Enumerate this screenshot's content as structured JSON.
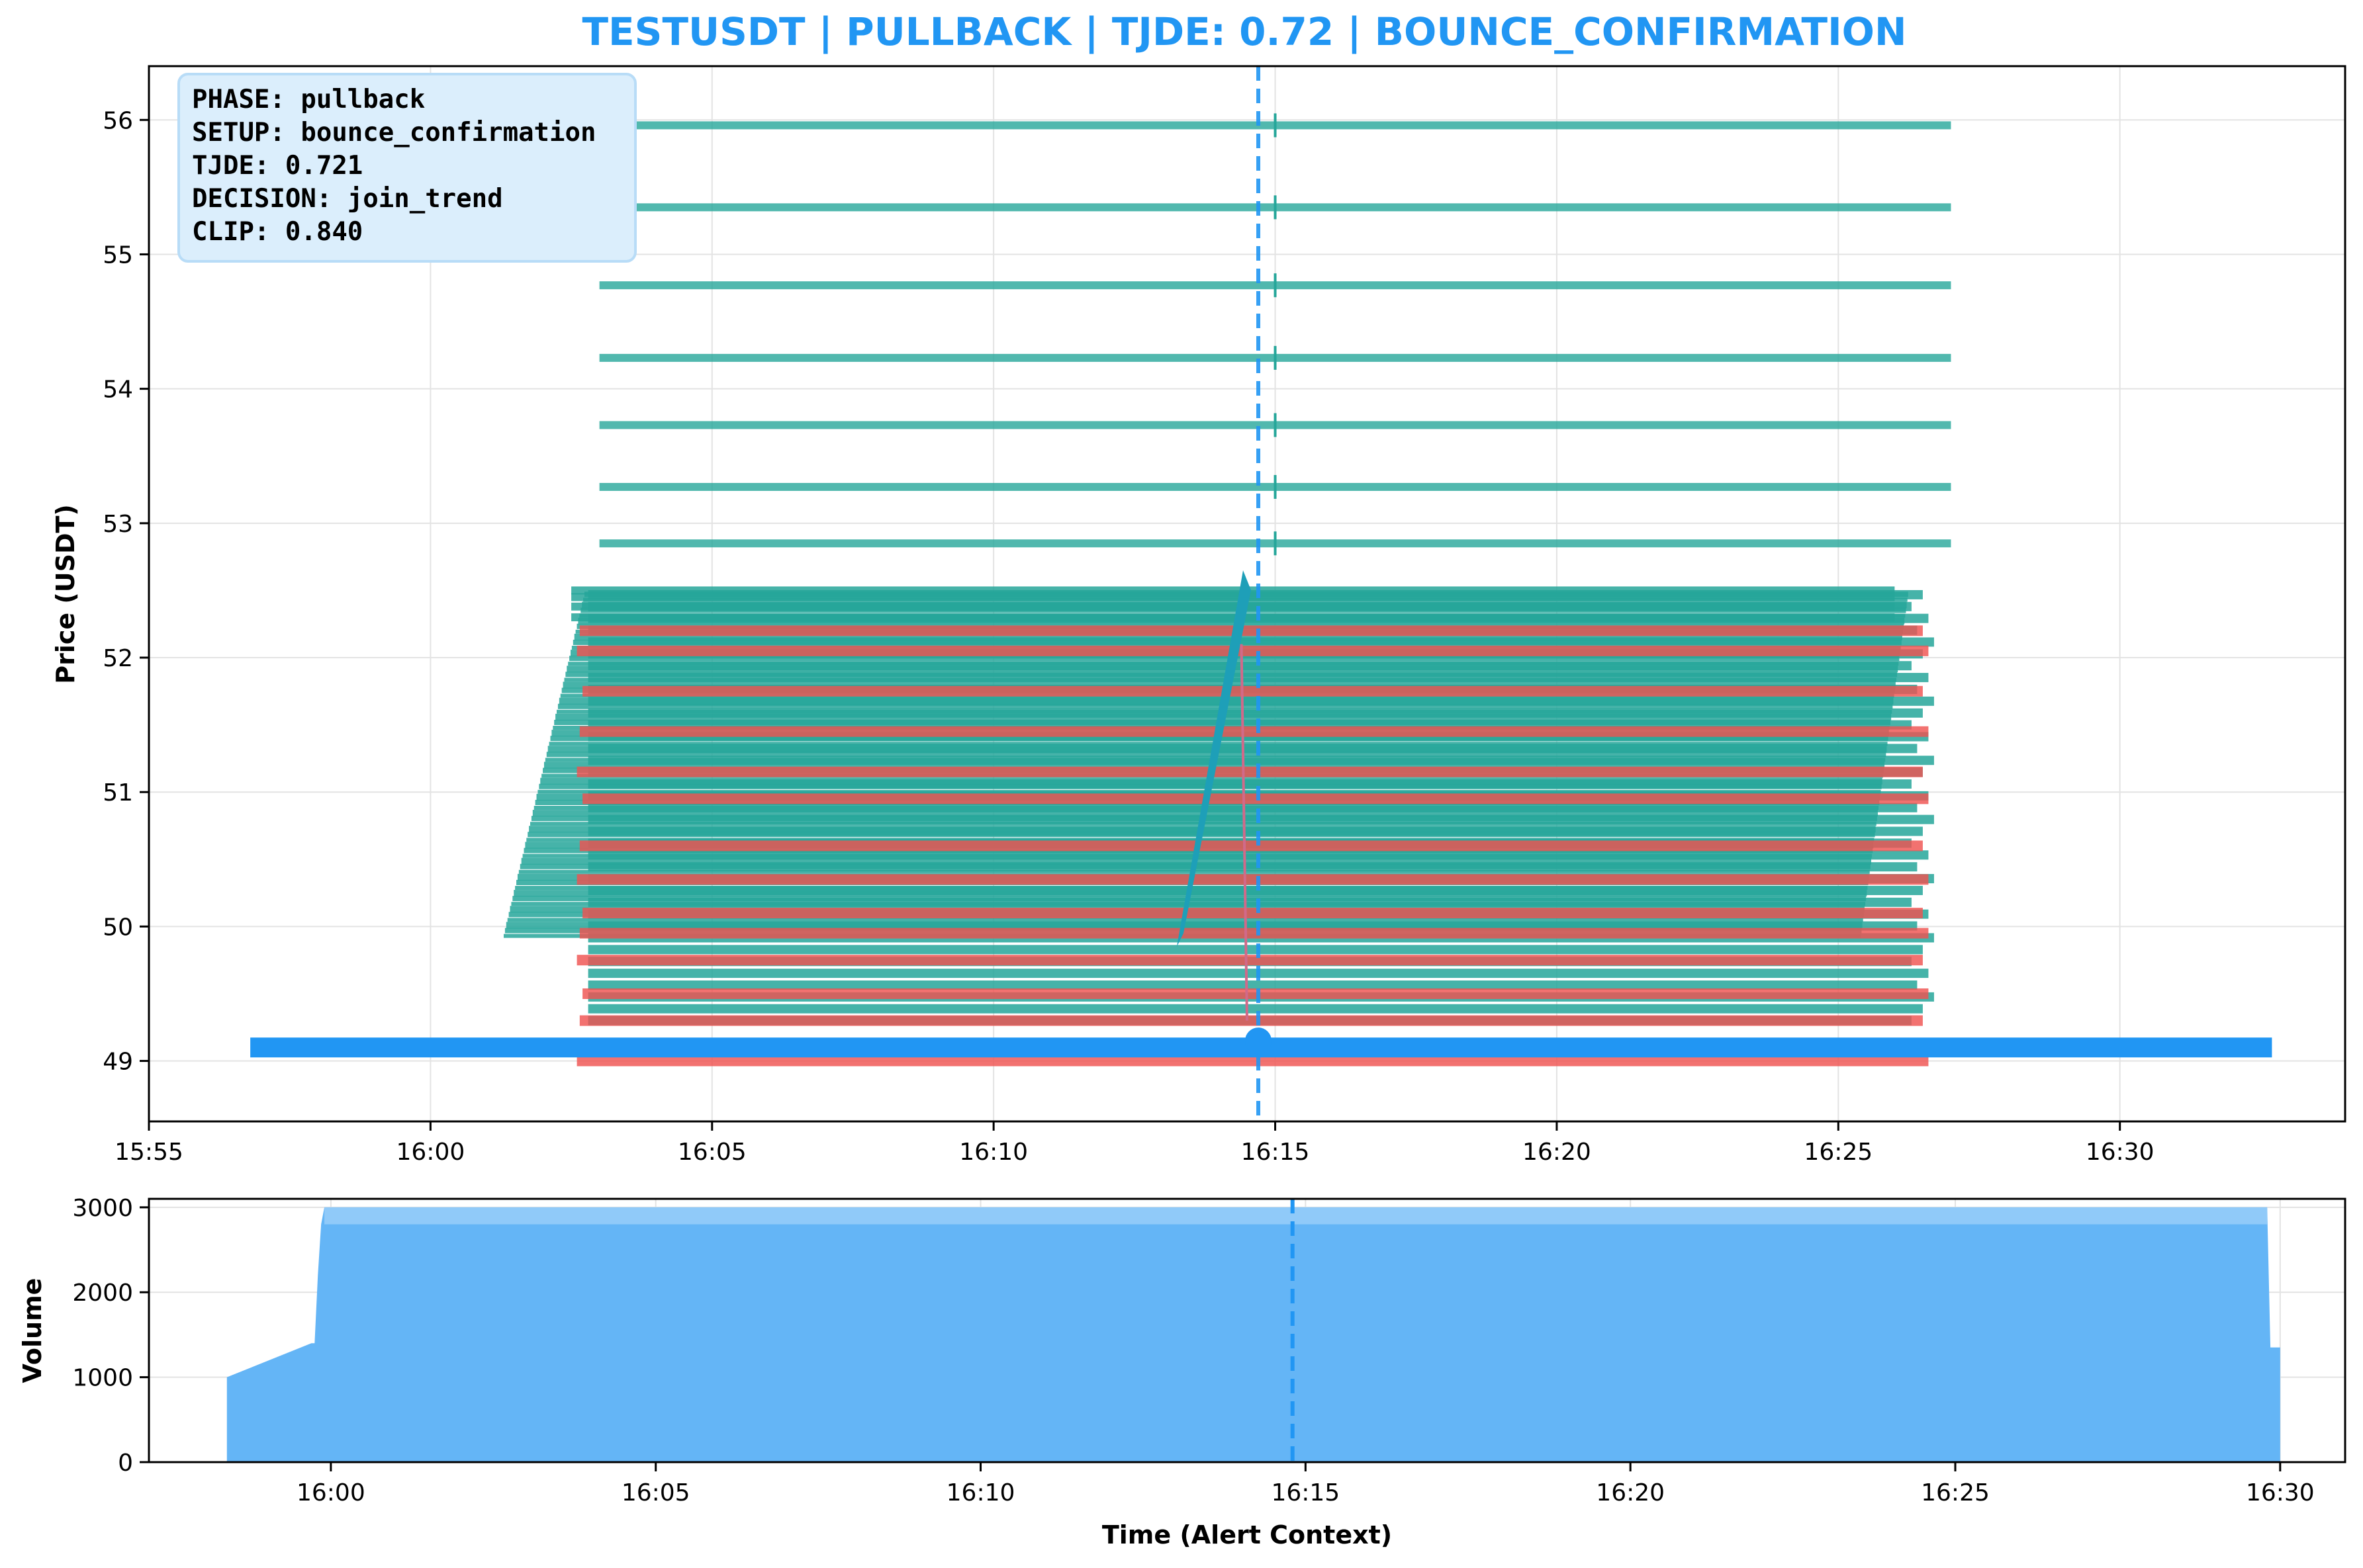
{
  "chart_data": [
    {
      "type": "candlestick",
      "title": "TESTUSDT | PULLBACK | TJDE: 0.72 | BOUNCE_CONFIRMATION",
      "xlabel": "",
      "ylabel": "Price (USDT)",
      "ylim": [
        48.55,
        56.4
      ],
      "xlim": [
        "15:55",
        "16:34"
      ],
      "grid": true,
      "x_ticks": [
        "15:55",
        "16:00",
        "16:05",
        "16:10",
        "16:15",
        "16:20",
        "16:25",
        "16:30"
      ],
      "y_ticks": [
        49,
        50,
        51,
        52,
        53,
        54,
        55,
        56
      ],
      "alert_time": "16:14.7",
      "bull_color": "#26a69a",
      "bear_color": "#ef5350",
      "alert_color": "#2196F3",
      "alert_price": 49.15,
      "alert_band": {
        "start": "15:56.8",
        "end": "16:32.7",
        "price": 49.1
      },
      "upper_bull_bars": [
        {
          "price": 55.96,
          "start": "16:03.0",
          "end": "16:27.0"
        },
        {
          "price": 55.35,
          "start": "16:03.0",
          "end": "16:27.0"
        },
        {
          "price": 54.77,
          "start": "16:03.0",
          "end": "16:27.0"
        },
        {
          "price": 54.23,
          "start": "16:03.0",
          "end": "16:27.0"
        },
        {
          "price": 53.73,
          "start": "16:03.0",
          "end": "16:27.0"
        },
        {
          "price": 53.27,
          "start": "16:03.0",
          "end": "16:27.0"
        },
        {
          "price": 52.85,
          "start": "16:03.0",
          "end": "16:27.0"
        }
      ],
      "trend_line": {
        "from": {
          "time": "16:13.3",
          "price": 49.85
        },
        "to": {
          "time": "16:14.5",
          "price": 52.65
        }
      },
      "info_box": {
        "phase": "PHASE: pullback",
        "setup": "SETUP: bounce_confirmation",
        "tjde": "TJDE: 0.721",
        "decision": "DECISION: join_trend",
        "clip": "CLIP: 0.840"
      }
    },
    {
      "type": "area",
      "title": "",
      "xlabel": "Time (Alert Context)",
      "ylabel": "Volume",
      "ylim": [
        0,
        3100
      ],
      "xlim": [
        "15:57.2",
        "16:31.0"
      ],
      "grid": true,
      "x_ticks": [
        "16:00",
        "16:05",
        "16:10",
        "16:15",
        "16:20",
        "16:25",
        "16:30"
      ],
      "y_ticks": [
        0,
        1000,
        2000,
        3000
      ],
      "alert_time": "16:14.8",
      "fill_color": "#64b5f6",
      "x": [
        "15:58.4",
        "15:59.7",
        "15:59.75",
        "15:59.8",
        "15:59.85",
        "15:59.9",
        "16:29.8",
        "16:29.85",
        "16:30.0"
      ],
      "y": [
        1000,
        1400,
        1400,
        2200,
        2800,
        3000,
        3000,
        1350,
        1350
      ]
    }
  ]
}
